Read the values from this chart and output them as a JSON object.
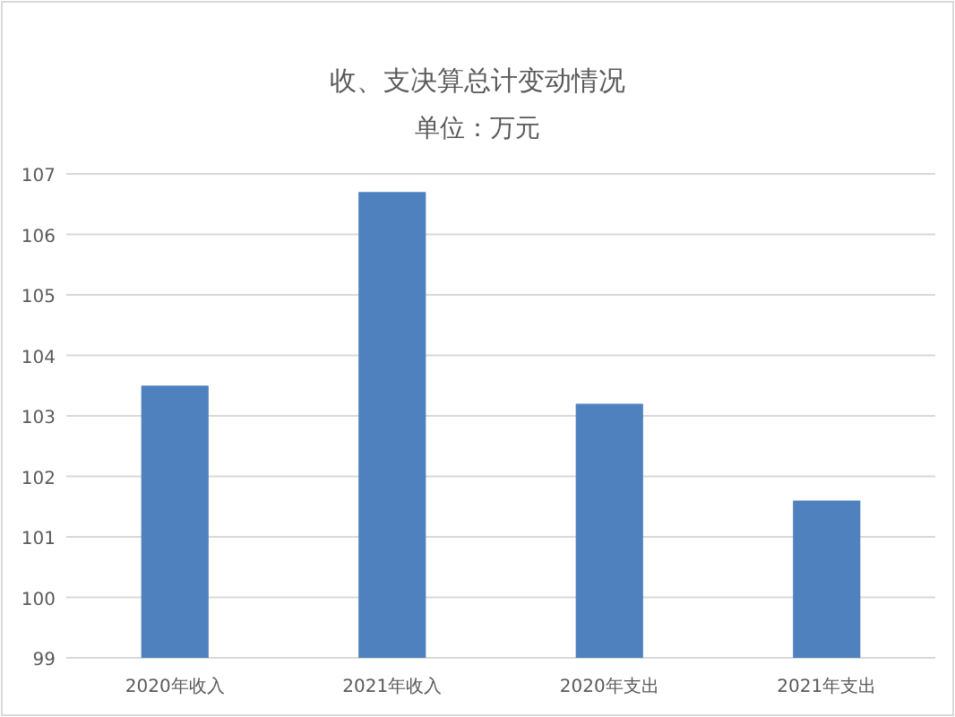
{
  "chart_data": {
    "type": "bar",
    "title": "收、支决算总计变动情况",
    "subtitle": "单位：万元",
    "categories": [
      "2020年收入",
      "2021年收入",
      "2020年支出",
      "2021年支出"
    ],
    "values": [
      103.5,
      106.7,
      103.2,
      101.6
    ],
    "color": "#4e81bd",
    "ylim": [
      99,
      107
    ],
    "yticks": [
      99,
      100,
      101,
      102,
      103,
      104,
      105,
      106,
      107
    ],
    "grid": "y"
  }
}
